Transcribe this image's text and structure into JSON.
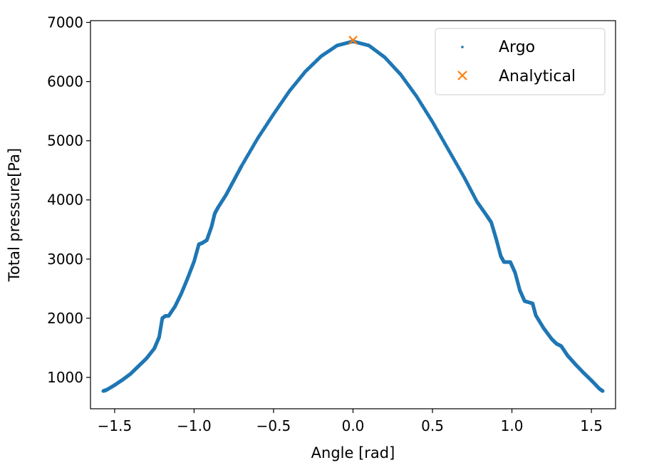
{
  "chart_data": {
    "type": "scatter",
    "title": "",
    "xlabel": "Angle [rad]",
    "ylabel": "Total pressure[Pa]",
    "xlim": [
      -1.652,
      1.652
    ],
    "ylim": [
      470,
      7030
    ],
    "xticks": [
      -1.5,
      -1.0,
      -0.5,
      0.0,
      0.5,
      1.0,
      1.5
    ],
    "xtick_labels": [
      "−1.5",
      "−1.0",
      "−0.5",
      "0.0",
      "0.5",
      "1.0",
      "1.5"
    ],
    "yticks": [
      1000,
      2000,
      3000,
      4000,
      5000,
      6000,
      7000
    ],
    "ytick_labels": [
      "1000",
      "2000",
      "3000",
      "4000",
      "5000",
      "6000",
      "7000"
    ],
    "grid": false,
    "legend_position": "top-right",
    "series": [
      {
        "name": "Argo",
        "marker": "point",
        "color": "#1f77b4",
        "points": [
          [
            -1.571,
            770
          ],
          [
            -1.55,
            790
          ],
          [
            -1.5,
            870
          ],
          [
            -1.45,
            960
          ],
          [
            -1.4,
            1060
          ],
          [
            -1.35,
            1190
          ],
          [
            -1.3,
            1320
          ],
          [
            -1.25,
            1490
          ],
          [
            -1.22,
            1680
          ],
          [
            -1.2,
            2000
          ],
          [
            -1.18,
            2040
          ],
          [
            -1.16,
            2040
          ],
          [
            -1.12,
            2200
          ],
          [
            -1.08,
            2420
          ],
          [
            -1.04,
            2680
          ],
          [
            -1.0,
            2960
          ],
          [
            -0.97,
            3250
          ],
          [
            -0.95,
            3270
          ],
          [
            -0.92,
            3320
          ],
          [
            -0.89,
            3550
          ],
          [
            -0.87,
            3770
          ],
          [
            -0.85,
            3870
          ],
          [
            -0.8,
            4080
          ],
          [
            -0.75,
            4330
          ],
          [
            -0.7,
            4580
          ],
          [
            -0.6,
            5040
          ],
          [
            -0.5,
            5450
          ],
          [
            -0.4,
            5840
          ],
          [
            -0.3,
            6170
          ],
          [
            -0.2,
            6430
          ],
          [
            -0.1,
            6610
          ],
          [
            0.0,
            6680
          ],
          [
            0.1,
            6610
          ],
          [
            0.2,
            6410
          ],
          [
            0.3,
            6120
          ],
          [
            0.4,
            5750
          ],
          [
            0.5,
            5320
          ],
          [
            0.6,
            4850
          ],
          [
            0.7,
            4380
          ],
          [
            0.78,
            3970
          ],
          [
            0.84,
            3740
          ],
          [
            0.87,
            3620
          ],
          [
            0.9,
            3350
          ],
          [
            0.93,
            3050
          ],
          [
            0.95,
            2950
          ],
          [
            0.99,
            2950
          ],
          [
            1.02,
            2770
          ],
          [
            1.05,
            2470
          ],
          [
            1.08,
            2290
          ],
          [
            1.13,
            2250
          ],
          [
            1.15,
            2050
          ],
          [
            1.2,
            1830
          ],
          [
            1.25,
            1650
          ],
          [
            1.28,
            1570
          ],
          [
            1.31,
            1530
          ],
          [
            1.35,
            1370
          ],
          [
            1.4,
            1220
          ],
          [
            1.45,
            1080
          ],
          [
            1.5,
            950
          ],
          [
            1.55,
            810
          ],
          [
            1.571,
            770
          ]
        ]
      },
      {
        "name": "Analytical",
        "marker": "x",
        "color": "#ff7f0e",
        "points": [
          [
            0.0,
            6700
          ]
        ]
      }
    ]
  }
}
